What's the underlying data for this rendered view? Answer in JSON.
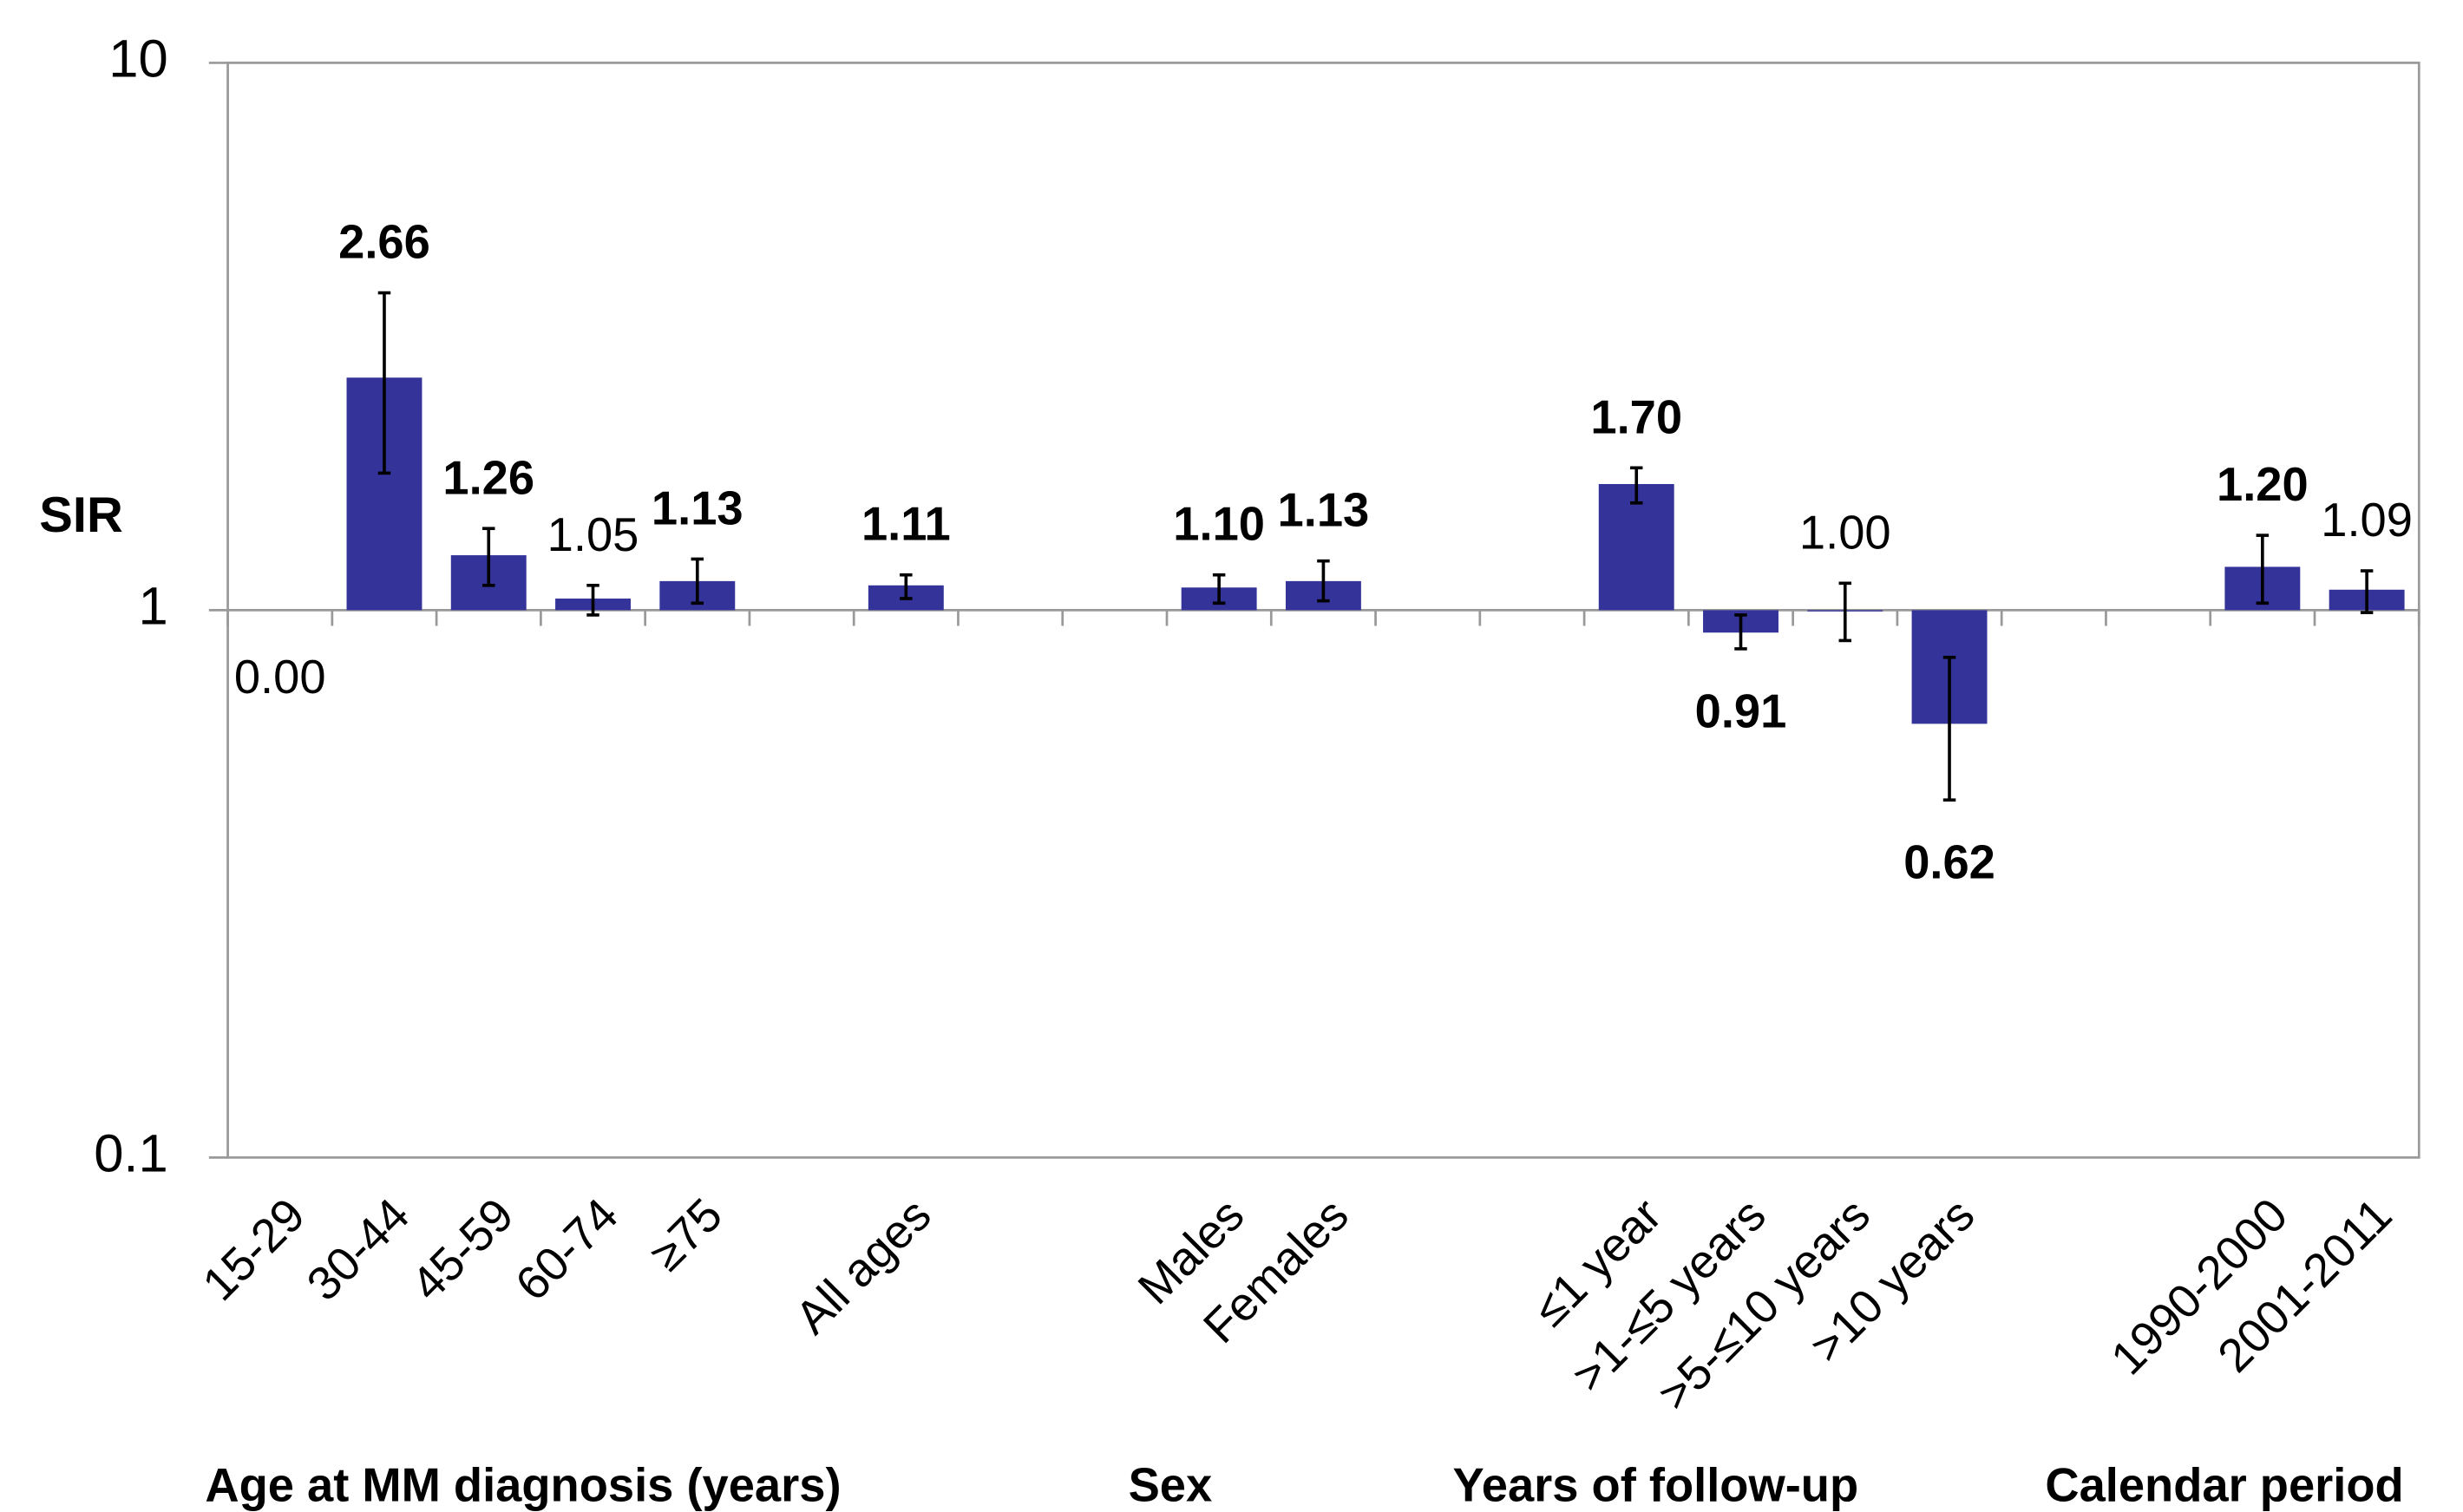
{
  "chart_data": {
    "type": "bar",
    "y_label": "SIR",
    "log_scale": true,
    "ylim": [
      0.1,
      10
    ],
    "yticks": [
      0.1,
      1,
      10
    ],
    "grid": false,
    "color": "#333399",
    "categories": [
      "15-29",
      "30-44",
      "45-59",
      "60-74",
      "≥75",
      null,
      "All ages",
      null,
      null,
      "Males",
      "Females",
      null,
      null,
      "≤1 year",
      ">1-≤5 years",
      ">5-≤10 years",
      ">10 years",
      null,
      null,
      "1990-2000",
      "2001-2011"
    ],
    "values": [
      0,
      2.66,
      1.26,
      1.05,
      1.13,
      null,
      1.11,
      null,
      null,
      1.1,
      1.13,
      null,
      null,
      1.7,
      0.91,
      1.0,
      0.62,
      null,
      null,
      1.2,
      1.09
    ],
    "value_labels": [
      "0.00",
      "2.66",
      "1.26",
      "1.05",
      "1.13",
      null,
      "1.11",
      null,
      null,
      "1.10",
      "1.13",
      null,
      null,
      "1.70",
      "0.91",
      "1.00",
      "0.62",
      null,
      null,
      "1.20",
      "1.09"
    ],
    "label_bold": [
      false,
      true,
      true,
      false,
      true,
      null,
      true,
      null,
      null,
      true,
      true,
      null,
      null,
      true,
      true,
      false,
      true,
      null,
      null,
      true,
      false
    ],
    "ci_lower": [
      null,
      1.78,
      1.11,
      0.98,
      1.03,
      null,
      1.05,
      null,
      null,
      1.03,
      1.04,
      null,
      null,
      1.57,
      0.85,
      0.88,
      0.45,
      null,
      null,
      1.03,
      0.99
    ],
    "ci_upper": [
      null,
      3.8,
      1.41,
      1.11,
      1.24,
      null,
      1.16,
      null,
      null,
      1.16,
      1.23,
      null,
      null,
      1.82,
      0.98,
      1.12,
      0.82,
      null,
      null,
      1.37,
      1.18
    ],
    "group_labels": [
      "Age at MM diagnosis (years)",
      "Sex",
      "Years of follow-up",
      "Calendar period"
    ]
  }
}
